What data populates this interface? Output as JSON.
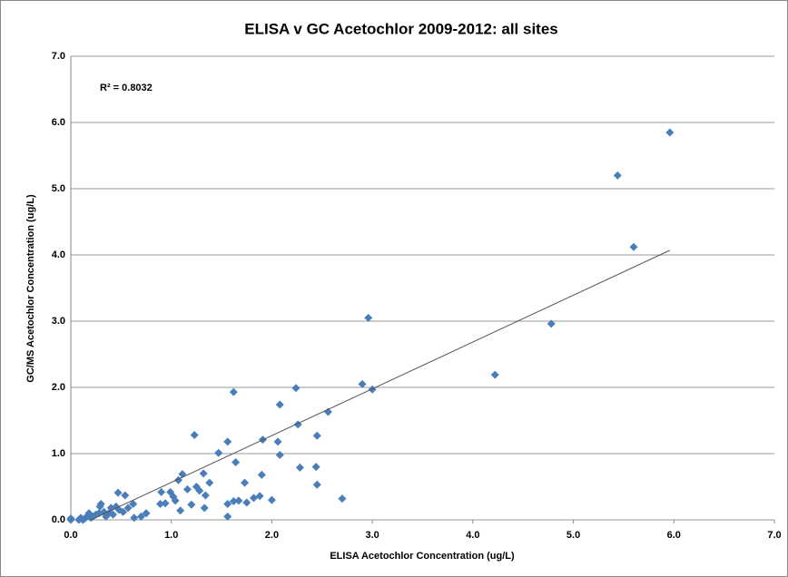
{
  "chart_data": {
    "type": "scatter",
    "title": "ELISA v GC Acetochlor 2009-2012: all sites",
    "x_label": "ELISA Acetochlor Concentration (ug/L)",
    "y_label": "GC/MS Acetochlor Concentration (ug/L)",
    "annotation": "R² = 0.8032",
    "xlim": [
      0,
      7
    ],
    "ylim": [
      0,
      7
    ],
    "xticks": [
      {
        "value": 0,
        "label": "0.0"
      },
      {
        "value": 1,
        "label": "1.0"
      },
      {
        "value": 2,
        "label": "2.0"
      },
      {
        "value": 3,
        "label": "3.0"
      },
      {
        "value": 4,
        "label": "4.0"
      },
      {
        "value": 5,
        "label": "5.0"
      },
      {
        "value": 6,
        "label": "6.0"
      },
      {
        "value": 7,
        "label": "7.0"
      }
    ],
    "yticks": [
      {
        "value": 0,
        "label": "0.0"
      },
      {
        "value": 1,
        "label": "1.0"
      },
      {
        "value": 2,
        "label": "2.0"
      },
      {
        "value": 3,
        "label": "3.0"
      },
      {
        "value": 4,
        "label": "4.0"
      },
      {
        "value": 5,
        "label": "5.0"
      },
      {
        "value": 6,
        "label": "6.0"
      },
      {
        "value": 7,
        "label": "7.0"
      }
    ],
    "grid": true,
    "color": "#4a7ebb",
    "trendline": {
      "x": [
        0.2,
        5.96
      ],
      "y": [
        0,
        4.07
      ],
      "color": "#555555"
    },
    "x": [
      5.96,
      5.44,
      5.6,
      4.78,
      4.22,
      2.96,
      2.9,
      3.0,
      2.56,
      2.24,
      2.26,
      2.45,
      2.08,
      2.06,
      2.08,
      2.28,
      2.44,
      2.45,
      2.7,
      1.62,
      1.23,
      1.56,
      1.47,
      1.91,
      1.64,
      1.9,
      1.73,
      1.32,
      1.11,
      1.07,
      1.25,
      1.34,
      1.38,
      1.88,
      1.82,
      2.0,
      1.62,
      1.67,
      1.75,
      1.56,
      1.56,
      1.02,
      0.99,
      0.9,
      0.94,
      0.89,
      1.04,
      1.2,
      1.09,
      1.33,
      0.75,
      0.7,
      0.63,
      0.62,
      0.47,
      0.54,
      0.57,
      0.45,
      0.4,
      0.38,
      0.33,
      0.3,
      0.29,
      0.28,
      0.25,
      0.22,
      0.2,
      0.18,
      0.16,
      0.14,
      0.12,
      0.1,
      0.08,
      0.0,
      0.0,
      0.35,
      0.42,
      0.48,
      0.52,
      1.16,
      1.28
    ],
    "y": [
      5.85,
      5.2,
      4.12,
      2.96,
      2.19,
      3.05,
      2.05,
      1.97,
      1.63,
      1.99,
      1.44,
      1.27,
      1.74,
      1.18,
      0.98,
      0.79,
      0.8,
      0.53,
      0.32,
      1.93,
      1.28,
      1.18,
      1.01,
      1.21,
      0.87,
      0.68,
      0.56,
      0.7,
      0.69,
      0.6,
      0.5,
      0.37,
      0.56,
      0.36,
      0.33,
      0.3,
      0.28,
      0.29,
      0.26,
      0.24,
      0.05,
      0.35,
      0.42,
      0.42,
      0.25,
      0.24,
      0.29,
      0.23,
      0.14,
      0.18,
      0.1,
      0.05,
      0.03,
      0.24,
      0.41,
      0.37,
      0.18,
      0.2,
      0.18,
      0.1,
      0.12,
      0.24,
      0.2,
      0.1,
      0.08,
      0.05,
      0.03,
      0.1,
      0.05,
      0.02,
      0.0,
      0.03,
      0.0,
      0.02,
      0.0,
      0.05,
      0.08,
      0.15,
      0.12,
      0.46,
      0.44
    ]
  }
}
